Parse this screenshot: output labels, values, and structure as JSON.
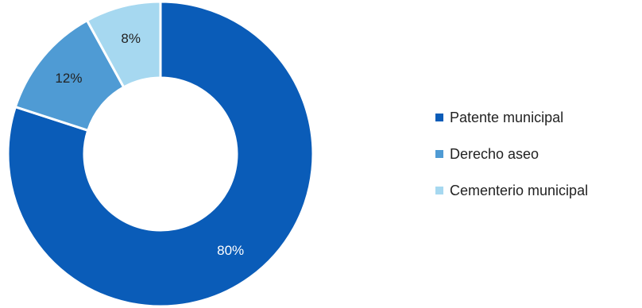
{
  "chart_data": {
    "type": "pie",
    "subtype": "donut",
    "categories": [
      "Patente municipal",
      "Derecho aseo",
      "Cementerio municipal"
    ],
    "values": [
      80,
      12,
      8
    ],
    "labels": [
      "80%",
      "12%",
      "8%"
    ],
    "colors": [
      "#0a5cb8",
      "#4f9bd4",
      "#a6d8f0"
    ],
    "label_colors": [
      "#ffffff",
      "#222222",
      "#222222"
    ],
    "legend_position": "right"
  }
}
